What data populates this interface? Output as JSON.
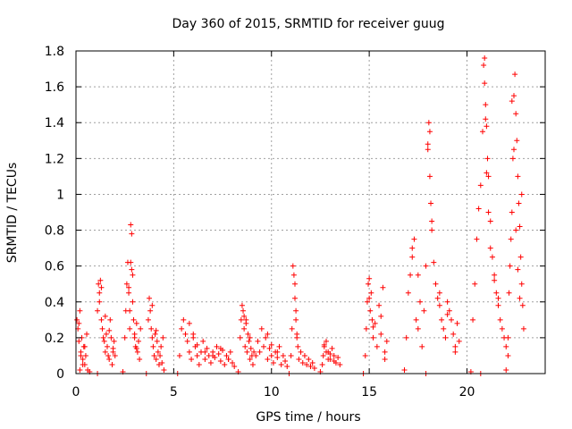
{
  "chart_data": {
    "type": "scatter",
    "title": "Day 360 of 2015, SRMTID for receiver guug",
    "xlabel": "GPS time / hours",
    "ylabel": "SRMTID / TECUs",
    "xlim": [
      0,
      24
    ],
    "ylim": [
      0,
      1.8
    ],
    "xticks": [
      0,
      5,
      10,
      15,
      20
    ],
    "xtick_labels": [
      "0",
      "5",
      "10",
      "15",
      "20"
    ],
    "yticks": [
      0,
      0.2,
      0.4,
      0.6,
      0.8,
      1.0,
      1.2,
      1.4,
      1.6,
      1.8
    ],
    "ytick_labels": [
      "0",
      "0.2",
      "0.4",
      "0.6",
      "0.8",
      "1",
      "1.2",
      "1.4",
      "1.6",
      "1.8"
    ],
    "grid": true,
    "legend": "none",
    "marker": "plus",
    "color": "#ff0000",
    "series": [
      {
        "x": [
          0.05,
          0.1,
          0.15,
          0.2,
          0.25,
          0.3,
          0.35,
          0.4,
          0.45,
          0.5,
          0.55,
          0.6,
          0.15,
          0.25,
          0.35,
          0.45,
          1.1,
          1.15,
          1.2,
          1.25,
          1.3,
          1.35,
          1.4,
          1.45,
          1.5,
          1.55,
          1.6,
          1.65,
          1.7,
          1.75,
          1.8,
          1.85,
          1.9,
          1.95,
          2.0,
          1.2,
          1.3,
          1.5,
          1.7,
          1.9,
          2.5,
          2.55,
          2.6,
          2.65,
          2.7,
          2.75,
          2.8,
          2.85,
          2.9,
          2.95,
          3.0,
          3.05,
          3.1,
          3.15,
          3.2,
          3.25,
          3.3,
          2.8,
          2.85,
          2.9,
          2.7,
          2.75,
          3.0,
          3.1,
          3.7,
          3.75,
          3.8,
          3.85,
          3.9,
          3.95,
          4.0,
          4.05,
          4.1,
          4.15,
          4.2,
          4.25,
          4.3,
          4.35,
          4.4,
          4.45,
          3.9,
          4.1,
          5.3,
          5.4,
          5.5,
          5.6,
          5.7,
          5.8,
          5.9,
          6.0,
          6.1,
          6.2,
          6.3,
          6.4,
          6.5,
          6.6,
          6.7,
          6.8,
          6.9,
          7.0,
          7.1,
          7.2,
          7.3,
          7.4,
          7.5,
          7.6,
          7.7,
          7.8,
          7.9,
          8.0,
          8.1,
          5.8,
          6.0,
          6.2,
          6.6,
          7.0,
          7.4,
          7.8,
          8.4,
          8.45,
          8.5,
          8.55,
          8.6,
          8.65,
          8.7,
          8.75,
          8.8,
          8.85,
          8.9,
          8.95,
          9.0,
          9.05,
          9.1,
          8.6,
          8.7,
          8.9,
          9.2,
          9.3,
          9.4,
          9.5,
          9.6,
          9.7,
          9.8,
          9.9,
          10.0,
          10.1,
          10.2,
          10.3,
          10.4,
          10.5,
          10.6,
          10.7,
          10.8,
          9.8,
          10.0,
          10.3,
          11.0,
          11.05,
          11.1,
          11.15,
          11.2,
          11.25,
          11.3,
          11.35,
          11.4,
          11.5,
          11.6,
          11.7,
          11.8,
          11.9,
          12.0,
          12.1,
          12.2,
          11.2,
          11.25,
          11.3,
          12.6,
          12.65,
          12.7,
          12.8,
          12.9,
          13.0,
          13.1,
          13.2,
          13.3,
          13.4,
          13.5,
          12.7,
          12.8,
          12.9,
          13.0,
          13.2,
          14.8,
          14.85,
          14.9,
          14.95,
          15.0,
          15.05,
          15.1,
          15.15,
          15.2,
          15.3,
          15.4,
          15.5,
          15.6,
          15.7,
          15.8,
          15.9,
          15.0,
          15.2,
          15.6,
          15.8,
          16.9,
          17.0,
          17.1,
          17.2,
          17.3,
          17.4,
          17.5,
          17.6,
          17.7,
          17.8,
          17.9,
          18.0,
          18.05,
          18.1,
          18.15,
          18.2,
          18.3,
          18.4,
          18.5,
          18.6,
          18.7,
          18.8,
          18.9,
          19.0,
          19.1,
          19.2,
          19.3,
          19.4,
          19.5,
          19.6,
          17.2,
          17.5,
          18.0,
          18.1,
          18.2,
          18.6,
          19.0,
          19.4,
          20.3,
          20.4,
          20.5,
          20.6,
          20.7,
          20.8,
          20.85,
          20.9,
          20.95,
          21.0,
          21.05,
          21.1,
          21.2,
          21.3,
          21.4,
          21.5,
          21.6,
          21.7,
          21.8,
          21.9,
          22.0,
          22.1,
          20.9,
          20.95,
          21.0,
          21.1,
          21.2,
          21.4,
          21.6,
          22.1,
          22.15,
          22.2,
          22.25,
          22.3,
          22.35,
          22.4,
          22.45,
          22.5,
          22.55,
          22.6,
          22.65,
          22.7,
          22.75,
          22.8,
          22.85,
          22.9,
          22.3,
          22.4,
          22.5,
          22.6,
          22.7,
          22.8,
          0.2,
          0.7,
          1.1,
          2.4,
          3.6,
          4.5,
          5.2,
          8.3,
          10.9,
          12.5,
          14.7,
          16.8,
          17.9,
          20.2,
          20.7,
          22.0
        ],
        "y": [
          0.3,
          0.25,
          0.18,
          0.35,
          0.12,
          0.2,
          0.08,
          0.15,
          0.05,
          0.1,
          0.22,
          0.02,
          0.28,
          0.1,
          0.05,
          0.15,
          0.35,
          0.5,
          0.45,
          0.52,
          0.3,
          0.25,
          0.2,
          0.18,
          0.12,
          0.22,
          0.15,
          0.1,
          0.08,
          0.3,
          0.2,
          0.05,
          0.12,
          0.18,
          0.1,
          0.4,
          0.48,
          0.32,
          0.24,
          0.14,
          0.2,
          0.35,
          0.5,
          0.62,
          0.45,
          0.25,
          0.83,
          0.78,
          0.55,
          0.3,
          0.22,
          0.15,
          0.28,
          0.12,
          0.18,
          0.08,
          0.25,
          0.62,
          0.58,
          0.4,
          0.48,
          0.35,
          0.2,
          0.14,
          0.3,
          0.42,
          0.35,
          0.25,
          0.2,
          0.15,
          0.1,
          0.22,
          0.08,
          0.18,
          0.12,
          0.05,
          0.1,
          0.15,
          0.06,
          0.2,
          0.38,
          0.24,
          0.1,
          0.25,
          0.3,
          0.22,
          0.18,
          0.12,
          0.08,
          0.2,
          0.15,
          0.1,
          0.05,
          0.12,
          0.18,
          0.08,
          0.14,
          0.1,
          0.06,
          0.12,
          0.09,
          0.15,
          0.11,
          0.07,
          0.13,
          0.05,
          0.1,
          0.08,
          0.12,
          0.06,
          0.04,
          0.28,
          0.22,
          0.16,
          0.12,
          0.1,
          0.14,
          0.08,
          0.2,
          0.3,
          0.38,
          0.35,
          0.25,
          0.15,
          0.28,
          0.12,
          0.22,
          0.18,
          0.08,
          0.14,
          0.1,
          0.05,
          0.12,
          0.32,
          0.3,
          0.2,
          0.1,
          0.18,
          0.12,
          0.25,
          0.15,
          0.2,
          0.08,
          0.14,
          0.1,
          0.06,
          0.12,
          0.09,
          0.15,
          0.05,
          0.1,
          0.07,
          0.04,
          0.22,
          0.16,
          0.12,
          0.1,
          0.25,
          0.6,
          0.55,
          0.42,
          0.3,
          0.2,
          0.15,
          0.08,
          0.12,
          0.06,
          0.1,
          0.05,
          0.08,
          0.04,
          0.06,
          0.03,
          0.5,
          0.35,
          0.22,
          0.05,
          0.1,
          0.15,
          0.18,
          0.12,
          0.08,
          0.14,
          0.1,
          0.06,
          0.09,
          0.05,
          0.16,
          0.12,
          0.08,
          0.11,
          0.07,
          0.1,
          0.25,
          0.4,
          0.5,
          0.53,
          0.35,
          0.45,
          0.3,
          0.2,
          0.28,
          0.15,
          0.38,
          0.22,
          0.48,
          0.12,
          0.18,
          0.42,
          0.26,
          0.32,
          0.08,
          0.2,
          0.45,
          0.55,
          0.65,
          0.75,
          0.3,
          0.25,
          0.4,
          0.15,
          0.35,
          0.6,
          1.28,
          1.4,
          1.1,
          0.95,
          0.85,
          0.62,
          0.5,
          0.42,
          0.38,
          0.3,
          0.25,
          0.2,
          0.4,
          0.35,
          0.3,
          0.22,
          0.15,
          0.28,
          0.18,
          0.7,
          0.55,
          1.25,
          1.35,
          0.8,
          0.45,
          0.33,
          0.12,
          0.3,
          0.5,
          0.75,
          0.92,
          1.05,
          1.35,
          1.72,
          1.76,
          1.5,
          1.38,
          1.2,
          1.1,
          0.85,
          0.65,
          0.52,
          0.45,
          0.38,
          0.3,
          0.25,
          0.2,
          0.15,
          0.1,
          1.62,
          1.42,
          1.12,
          0.9,
          0.7,
          0.55,
          0.42,
          0.2,
          0.45,
          0.6,
          0.75,
          0.9,
          1.2,
          1.55,
          1.67,
          1.45,
          1.3,
          1.1,
          0.95,
          0.82,
          0.65,
          0.5,
          0.38,
          0.25,
          1.52,
          1.25,
          0.8,
          0.58,
          0.42,
          1.0,
          0.02,
          0.01,
          0.0,
          0.01,
          0.0,
          0.02,
          0.0,
          0.01,
          0.0,
          0.01,
          0.0,
          0.02,
          0.0,
          0.01,
          0.0,
          0.02
        ]
      }
    ]
  }
}
